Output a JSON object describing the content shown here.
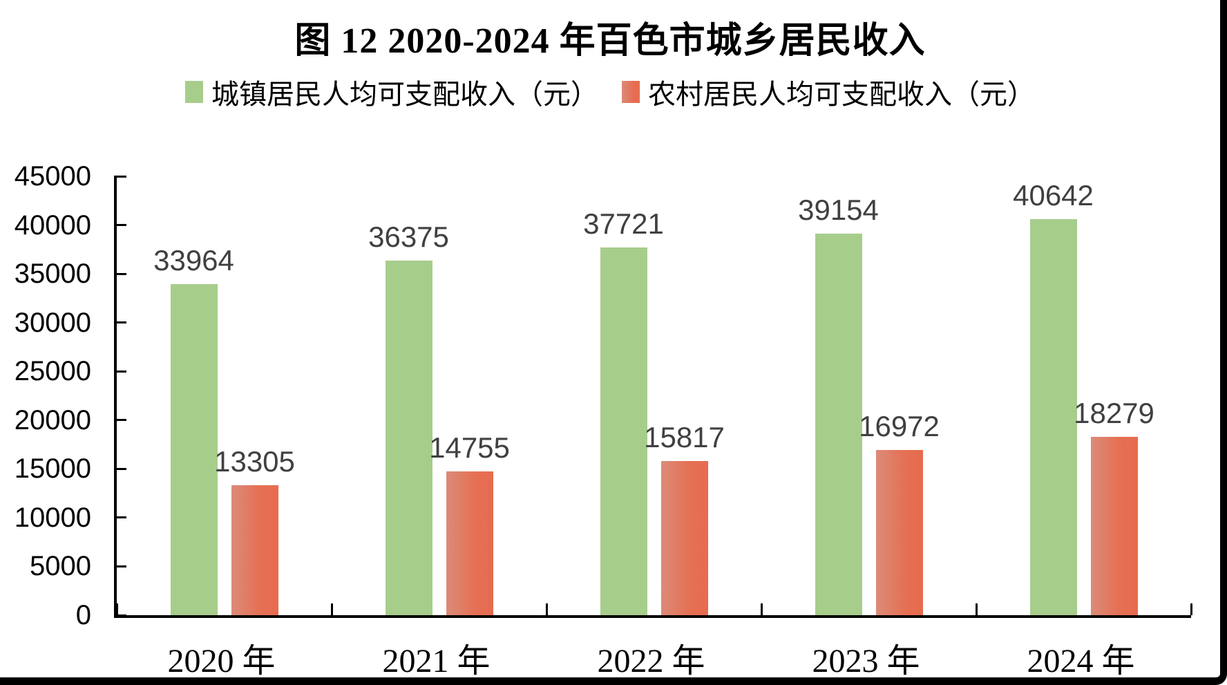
{
  "chart_data": {
    "type": "bar",
    "title": "图 12  2020-2024 年百色市城乡居民收入",
    "categories": [
      "2020 年",
      "2021 年",
      "2022 年",
      "2023 年",
      "2024 年"
    ],
    "series": [
      {
        "name": "城镇居民人均可支配收入（元）",
        "color": "#a7cd8b",
        "values": [
          33964,
          36375,
          37721,
          39154,
          40642
        ]
      },
      {
        "name": "农村居民人均可支配收入（元）",
        "color": "#e57054",
        "values": [
          13305,
          14755,
          15817,
          16972,
          18279
        ]
      }
    ],
    "ylim": [
      0,
      45000
    ],
    "ytick_step": 5000,
    "grid": false,
    "legend_position": "top",
    "value_labels": true,
    "value_label_color": "#404040",
    "frame_color": "#000000"
  }
}
